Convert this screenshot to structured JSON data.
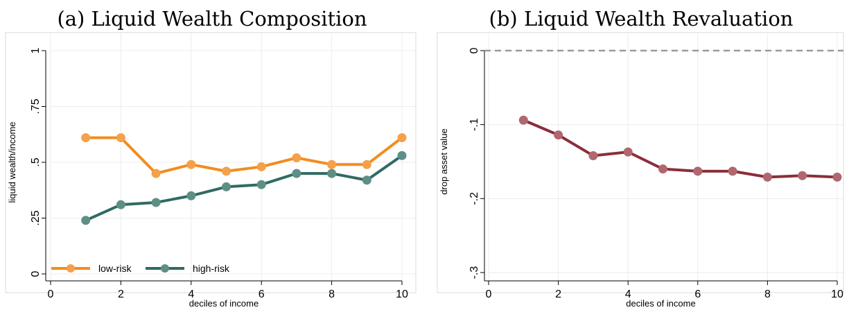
{
  "chart_data": [
    {
      "type": "line",
      "title": "(a) Liquid Wealth Composition",
      "xlabel": "deciles of income",
      "ylabel": "liquid wealth/income",
      "xlim": [
        0,
        10
      ],
      "ylim": [
        0,
        1
      ],
      "x_ticks": [
        "0",
        "2",
        "4",
        "6",
        "8",
        "10"
      ],
      "y_ticks": [
        "0",
        ".25",
        ".5",
        ".75",
        "1"
      ],
      "grid": true,
      "legend_position": "bottom-left",
      "x": [
        1,
        2,
        3,
        4,
        5,
        6,
        7,
        8,
        9,
        10
      ],
      "series": [
        {
          "name": "low-risk",
          "color": "#f28c1e",
          "marker_color": "#f5a04a",
          "values": [
            0.61,
            0.61,
            0.45,
            0.49,
            0.46,
            0.48,
            0.52,
            0.49,
            0.49,
            0.61
          ]
        },
        {
          "name": "high-risk",
          "color": "#2f6b63",
          "marker_color": "#5e8f87",
          "values": [
            0.24,
            0.31,
            0.32,
            0.35,
            0.39,
            0.4,
            0.45,
            0.45,
            0.42,
            0.53
          ]
        }
      ]
    },
    {
      "type": "line",
      "title": "(b) Liquid Wealth Revaluation",
      "xlabel": "deciles of income",
      "ylabel": "drop asset value",
      "xlim": [
        0,
        10
      ],
      "ylim": [
        -0.3,
        0
      ],
      "x_ticks": [
        "0",
        "2",
        "4",
        "6",
        "8",
        "10"
      ],
      "y_ticks": [
        "0",
        "-.1",
        "-.2",
        "-.3"
      ],
      "grid": true,
      "reference_line": {
        "y": 0,
        "style": "dashed",
        "color": "#9a9a9a"
      },
      "x": [
        1,
        2,
        3,
        4,
        5,
        6,
        7,
        8,
        9,
        10
      ],
      "series": [
        {
          "color": "#8b2e3a",
          "marker_color": "#b0676f",
          "values": [
            -0.094,
            -0.114,
            -0.142,
            -0.137,
            -0.16,
            -0.163,
            -0.163,
            -0.171,
            -0.169,
            -0.171
          ]
        }
      ]
    }
  ]
}
